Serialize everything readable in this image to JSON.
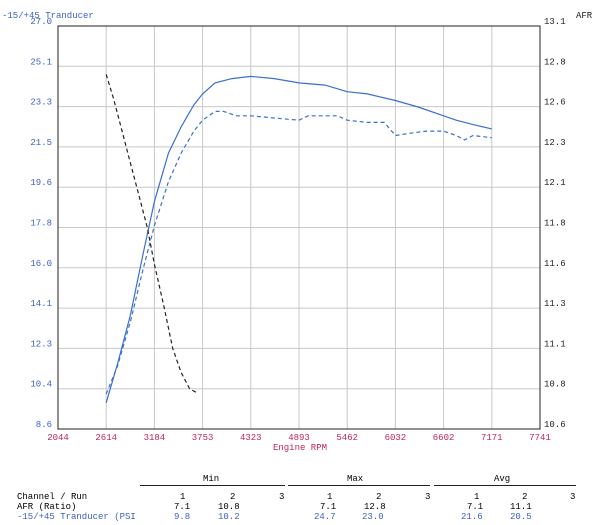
{
  "chart_data": {
    "type": "line",
    "left_axis_title": "-15/+45 Tranducer",
    "right_axis_title": "AFR",
    "xlabel": "Engine RPM",
    "x_ticks": [
      "2044",
      "2614",
      "3184",
      "3753",
      "4323",
      "4893",
      "5462",
      "6032",
      "6602",
      "7171",
      "7741"
    ],
    "y_left_ticks": [
      "27.0",
      "25.1",
      "23.3",
      "21.5",
      "19.6",
      "17.8",
      "16.0",
      "14.1",
      "12.3",
      "10.4",
      "8.6"
    ],
    "y_right_ticks": [
      "13.1",
      "12.8",
      "12.6",
      "12.3",
      "12.1",
      "11.8",
      "11.6",
      "11.3",
      "11.1",
      "10.8",
      "10.6"
    ],
    "xlim": [
      2044,
      7741
    ],
    "ylim_left": [
      8.6,
      27.0
    ],
    "ylim_right": [
      10.6,
      13.1
    ],
    "grid": true,
    "colors": {
      "boost": "#3a6fd0",
      "afr": "#222222",
      "tick_x": "#c0245a",
      "tick_y": "#3a5fc8"
    },
    "series": [
      {
        "id": "boost-run1",
        "axis": "left",
        "style": "solid",
        "color": "#3a6fd0",
        "x": [
          2614,
          2750,
          2900,
          3050,
          3184,
          3350,
          3500,
          3650,
          3753,
          3900,
          4100,
          4323,
          4600,
          4893,
          5200,
          5462,
          5700,
          6032,
          6300,
          6602,
          6750,
          6950,
          7171
        ],
        "y": [
          9.8,
          11.6,
          13.8,
          16.6,
          19.0,
          21.2,
          22.4,
          23.4,
          23.9,
          24.4,
          24.6,
          24.7,
          24.6,
          24.4,
          24.3,
          24.0,
          23.9,
          23.6,
          23.3,
          22.9,
          22.7,
          22.5,
          22.3
        ]
      },
      {
        "id": "boost-run2",
        "axis": "left",
        "style": "dashed",
        "color": "#3a6fd0",
        "x": [
          2614,
          2750,
          2900,
          3050,
          3184,
          3350,
          3500,
          3650,
          3753,
          3900,
          4000,
          4150,
          4323,
          4600,
          4893,
          5000,
          5200,
          5350,
          5462,
          5700,
          5900,
          6032,
          6200,
          6400,
          6602,
          6750,
          6850,
          6950,
          7171
        ],
        "y": [
          10.2,
          11.5,
          13.5,
          15.9,
          17.9,
          19.9,
          21.2,
          22.2,
          22.7,
          23.1,
          23.1,
          22.9,
          22.9,
          22.8,
          22.7,
          22.9,
          22.9,
          22.9,
          22.7,
          22.6,
          22.6,
          22.0,
          22.1,
          22.2,
          22.2,
          22.0,
          21.8,
          22.0,
          21.9
        ]
      },
      {
        "id": "afr-run1",
        "axis": "right",
        "style": "dashed",
        "color": "#222222",
        "x": [
          2614,
          2700,
          2800,
          2900,
          3000,
          3100,
          3184,
          3300,
          3400,
          3500,
          3600,
          3700
        ],
        "y": [
          12.8,
          12.65,
          12.45,
          12.25,
          12.05,
          11.85,
          11.62,
          11.35,
          11.1,
          10.95,
          10.85,
          10.82
        ]
      }
    ]
  },
  "summary": {
    "headers": {
      "min": "Min",
      "max": "Max",
      "avg": "Avg"
    },
    "channel_run_label": "Channel / Run",
    "run_numbers": [
      "1",
      "2",
      "3"
    ],
    "rows": [
      {
        "label": "AFR (Ratio)",
        "min": [
          "7.1",
          "10.8"
        ],
        "max": [
          "7.1",
          "12.8"
        ],
        "avg": [
          "7.1",
          "11.1"
        ]
      },
      {
        "label": "-15/+45 Tranducer (PSI",
        "min": [
          "9.8",
          "10.2"
        ],
        "max": [
          "24.7",
          "23.0"
        ],
        "avg": [
          "21.6",
          "20.5"
        ]
      }
    ]
  }
}
